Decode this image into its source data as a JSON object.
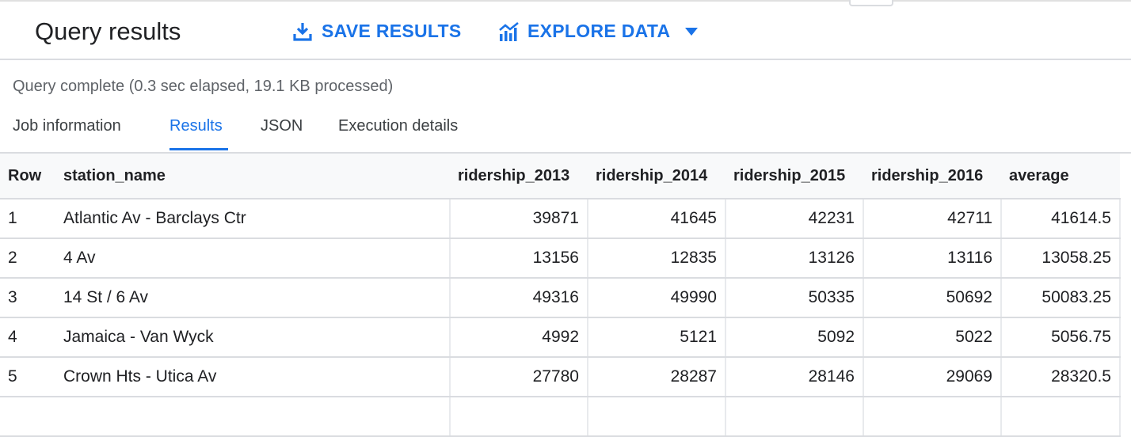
{
  "header": {
    "title": "Query results",
    "save_label": "SAVE RESULTS",
    "explore_label": "EXPLORE DATA"
  },
  "status": "Query complete (0.3 sec elapsed, 19.1 KB processed)",
  "tabs": [
    {
      "label": "Job information"
    },
    {
      "label": "Results"
    },
    {
      "label": "JSON"
    },
    {
      "label": "Execution details"
    }
  ],
  "table": {
    "columns": [
      "Row",
      "station_name",
      "ridership_2013",
      "ridership_2014",
      "ridership_2015",
      "ridership_2016",
      "average"
    ],
    "rows": [
      [
        "1",
        "Atlantic Av - Barclays Ctr",
        "39871",
        "41645",
        "42231",
        "42711",
        "41614.5"
      ],
      [
        "2",
        "4 Av",
        "13156",
        "12835",
        "13126",
        "13116",
        "13058.25"
      ],
      [
        "3",
        "14 St / 6 Av",
        "49316",
        "49990",
        "50335",
        "50692",
        "50083.25"
      ],
      [
        "4",
        "Jamaica - Van Wyck",
        "4992",
        "5121",
        "5092",
        "5022",
        "5056.75"
      ],
      [
        "5",
        "Crown Hts - Utica Av",
        "27780",
        "28287",
        "28146",
        "29069",
        "28320.5"
      ]
    ]
  },
  "colors": {
    "accent": "#1a73e8",
    "border": "#dadce0",
    "muted": "#5f6368"
  },
  "icons": {
    "save": "download-icon",
    "explore": "chart-icon",
    "dropdown": "caret-down-icon"
  }
}
